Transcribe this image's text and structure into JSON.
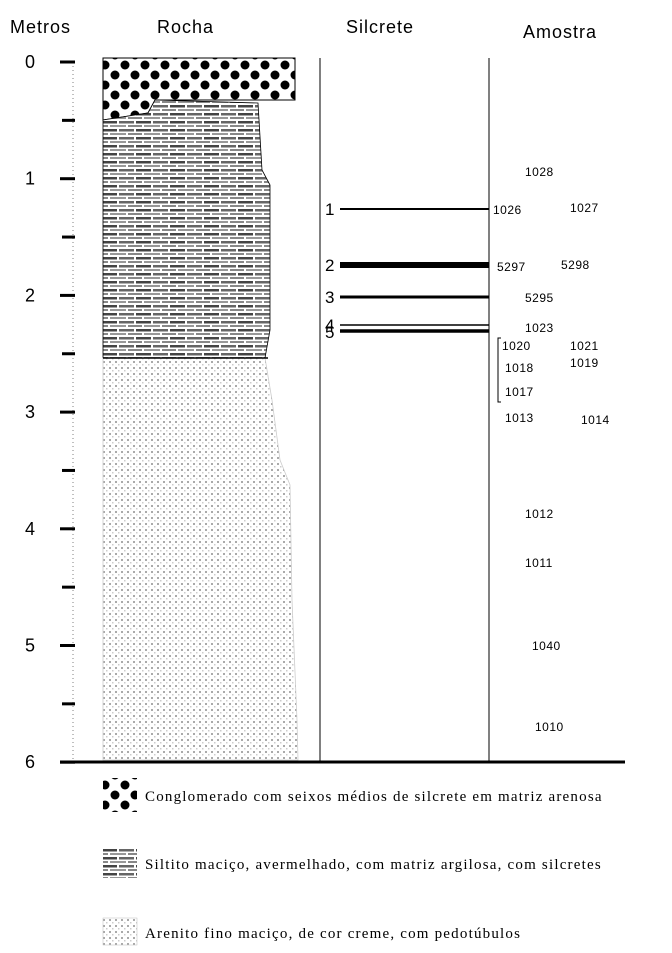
{
  "headers": [
    "Metros",
    "Rocha",
    "Silcrete",
    "Amostra"
  ],
  "depth_labels": [
    "0",
    "1",
    "2",
    "3",
    "4",
    "5",
    "6"
  ],
  "silcretes": [
    "1",
    "2",
    "3",
    "4",
    "5"
  ],
  "samples": [
    "1028",
    "1026",
    "1027",
    "5297",
    "5298",
    "5295",
    "1023",
    "1020",
    "1021",
    "1018",
    "1019",
    "1017",
    "1013",
    "1014",
    "1012",
    "1011",
    "1040",
    "1010"
  ],
  "legend": [
    "Conglomerado com seixos médios de silcrete em matriz arenosa",
    "Siltito maciço, avermelhado, com matriz argilosa, com silcretes",
    "Arenito fino maciço, de cor creme, com pedotúbulos"
  ]
}
